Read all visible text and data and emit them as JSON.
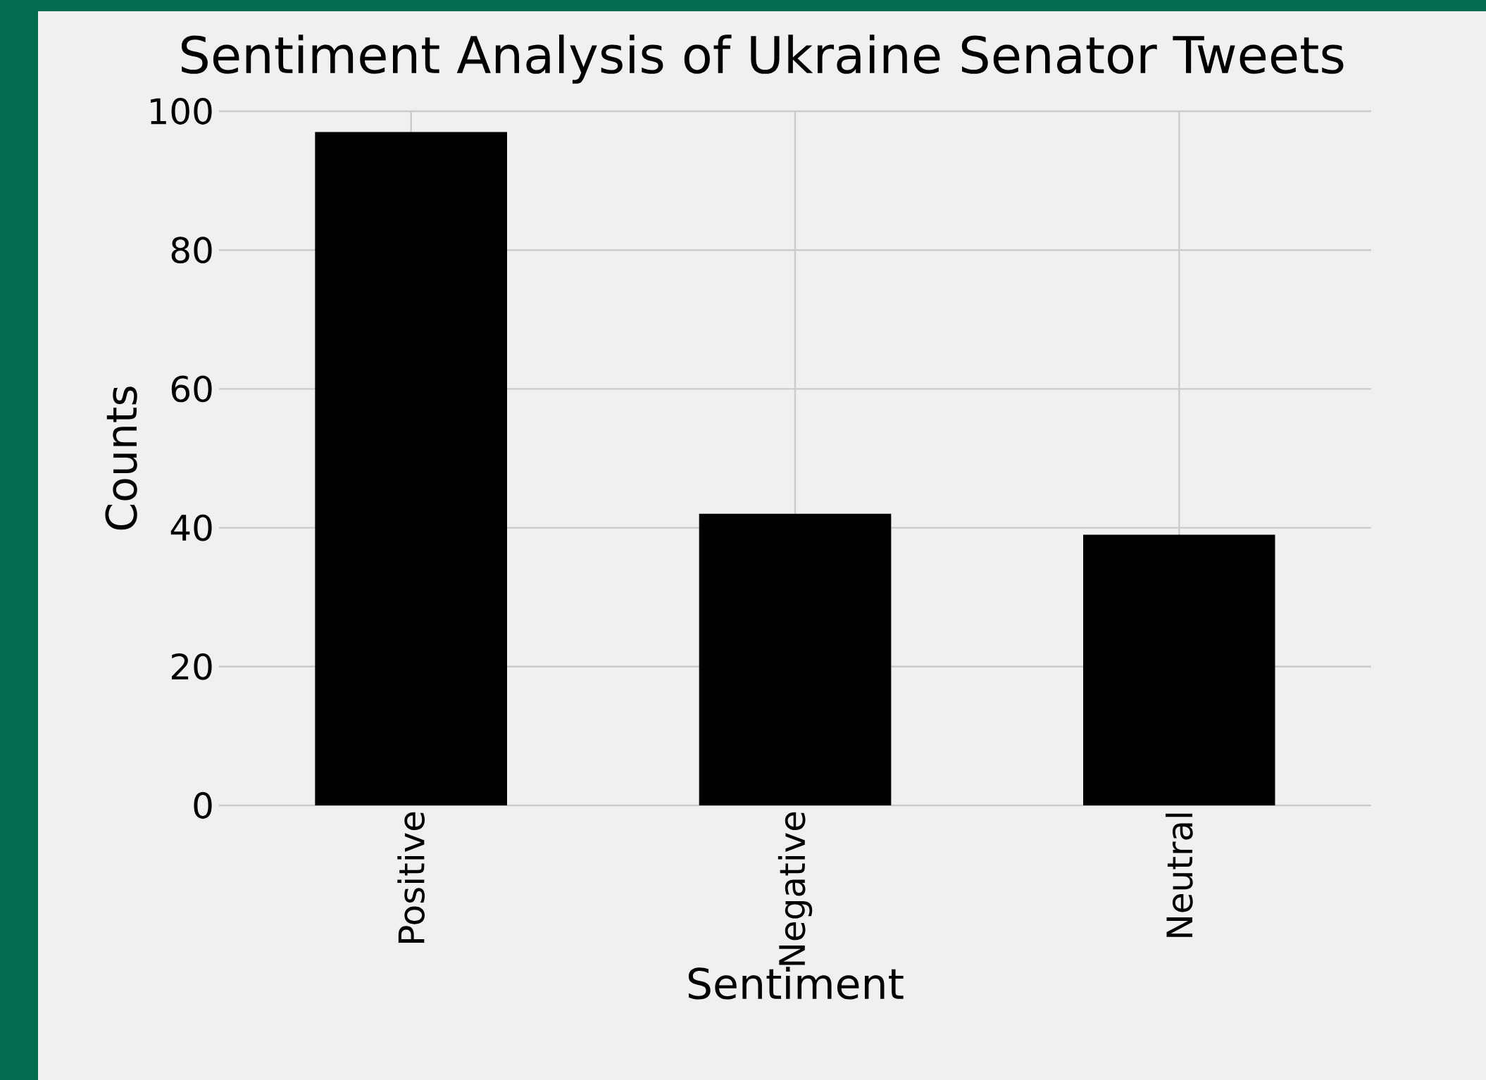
{
  "chart_data": {
    "type": "bar",
    "title": "Sentiment Analysis of Ukraine Senator Tweets",
    "xlabel": "Sentiment",
    "ylabel": "Counts",
    "categories": [
      "Positive",
      "Negative",
      "Neutral"
    ],
    "values": [
      97,
      42,
      39
    ],
    "color": "#000000",
    "ylim": [
      0,
      100
    ],
    "yticks": [
      0,
      20,
      40,
      60,
      80,
      100
    ],
    "grid": true
  }
}
